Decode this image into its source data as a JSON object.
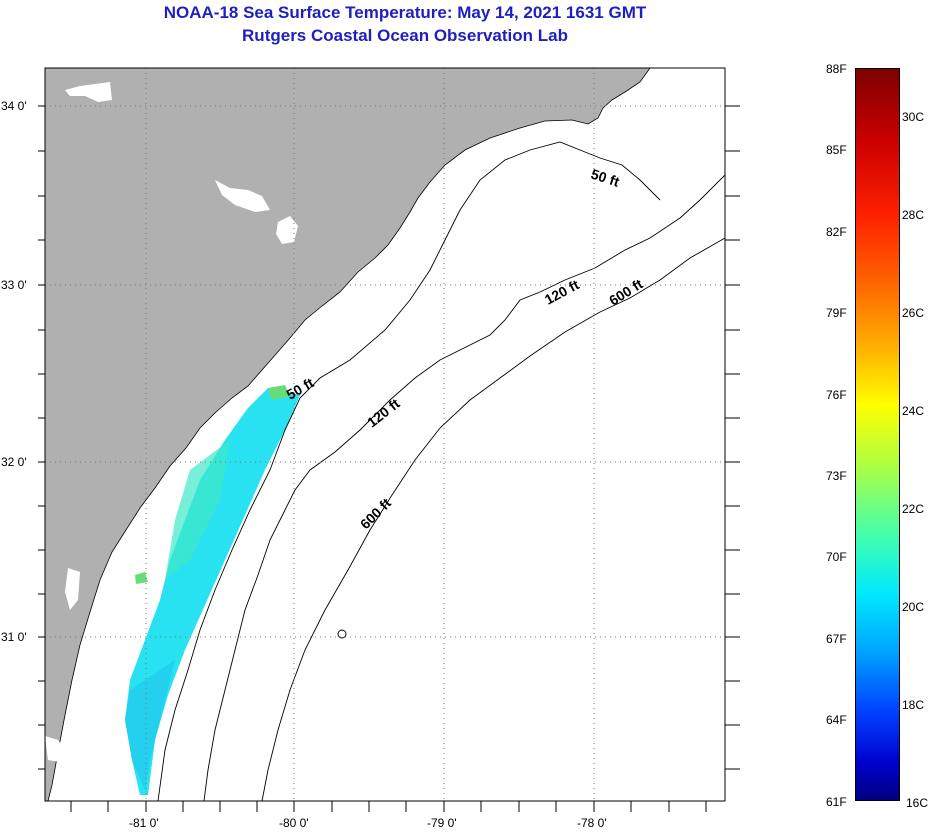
{
  "title": {
    "line1": "NOAA-18 Sea Surface Temperature:  May 14, 2021 1631 GMT",
    "line2": "Rutgers Coastal Ocean Observation Lab"
  },
  "colors": {
    "title": "#1f1fbf",
    "land": "#b0b0b0",
    "ocean": "#ffffff",
    "sst_swath": "#1ee0f0"
  },
  "map": {
    "lat_labels": [
      "34 0'",
      "33 0'",
      "32 0'",
      "31 0'"
    ],
    "lon_labels": [
      "-81 0'",
      "-80 0'",
      "-79 0'",
      "-78 0'"
    ],
    "contours": {
      "c50_top": "50 ft",
      "c50_mid": "50 ft",
      "c120_top": "120 ft",
      "c120_mid": "120 ft",
      "c600_top": "600 ft",
      "c600_mid": "600 ft"
    }
  },
  "colorbar": {
    "f_labels": [
      "88F",
      "85F",
      "82F",
      "79F",
      "76F",
      "73F",
      "70F",
      "67F",
      "64F",
      "61F"
    ],
    "c_labels": [
      "30C",
      "28C",
      "26C",
      "24C",
      "22C",
      "20C",
      "18C",
      "16C"
    ],
    "range_f": [
      61,
      88
    ],
    "range_c": [
      16,
      31
    ]
  }
}
